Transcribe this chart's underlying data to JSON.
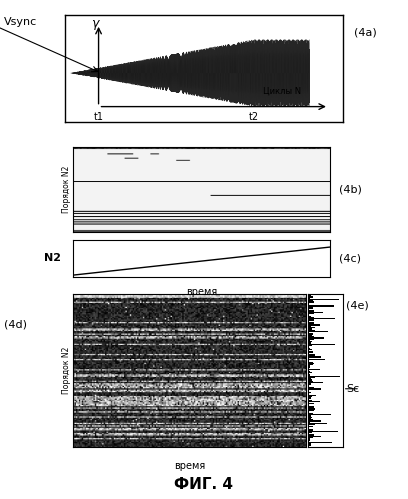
{
  "bg_color": "#ffffff",
  "fig_width": 4.08,
  "fig_height": 4.99,
  "fig_dpi": 100,
  "label_4a": "(4a)",
  "label_4b": "(4b)",
  "label_4c": "(4c)",
  "label_4d": "(4d)",
  "label_4e": "(4e)",
  "label_Sc": "Sc",
  "label_vsync": "Vsync",
  "label_gamma": "γ",
  "label_t1": "t1",
  "label_t2": "t2",
  "label_cycles": "Циклы N",
  "label_order": "Порядок N2",
  "label_N2": "N2",
  "label_time": "время",
  "label_fig": "ФИГ. 4"
}
